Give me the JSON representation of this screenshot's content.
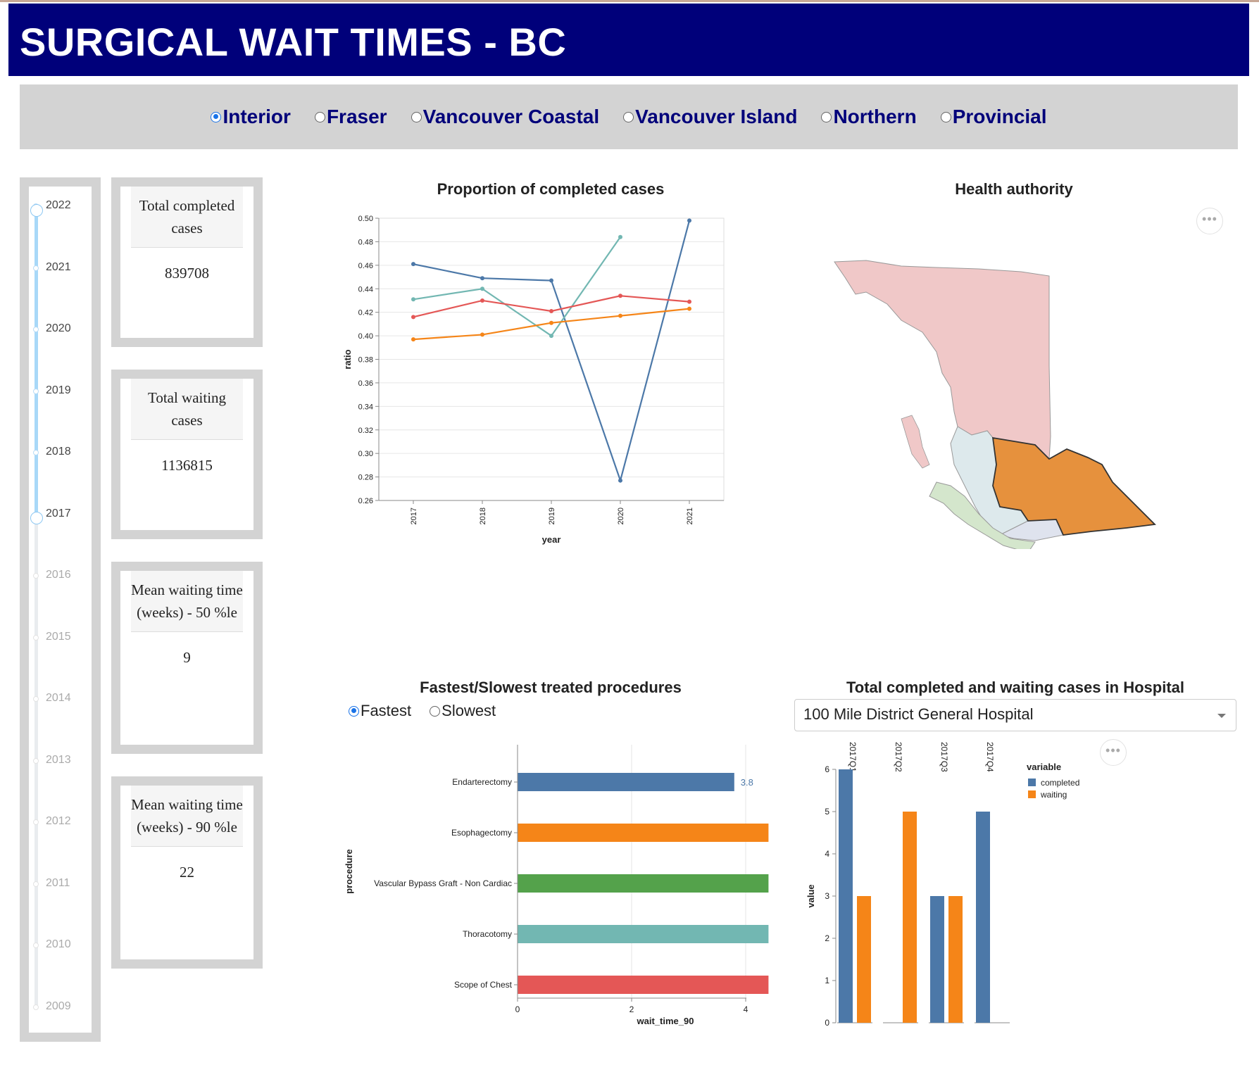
{
  "header": {
    "title": "SURGICAL WAIT TIMES - BC"
  },
  "health_authorities": {
    "selected": "Interior",
    "options": [
      "Interior",
      "Fraser",
      "Vancouver Coastal",
      "Vancouver Island",
      "Northern",
      "Provincial"
    ]
  },
  "year_slider": {
    "years": [
      "2022",
      "2021",
      "2020",
      "2019",
      "2018",
      "2017",
      "2016",
      "2015",
      "2014",
      "2013",
      "2012",
      "2011",
      "2010",
      "2009"
    ],
    "range_start": "2017",
    "range_end": "2022"
  },
  "summary_cards": [
    {
      "label": "Total completed cases",
      "value": "839708"
    },
    {
      "label": "Total waiting cases",
      "value": "1136815"
    },
    {
      "label": "Mean waiting time (weeks) - 50 %le",
      "value": "9"
    },
    {
      "label": "Mean waiting time (weeks) - 90 %le",
      "value": "22"
    }
  ],
  "line_panel": {
    "title": "Proportion of completed cases"
  },
  "map_panel": {
    "title": "Health authority",
    "menu_icon": "ellipsis-icon",
    "selected_region": "Interior"
  },
  "procedures_panel": {
    "title": "Fastest/Slowest treated procedures",
    "selected": "Fastest",
    "options": [
      "Fastest",
      "Slowest"
    ]
  },
  "hospital_panel": {
    "title": "Total completed and waiting cases in Hospital",
    "selected_hospital": "100 Mile District General Hospital",
    "menu_icon": "ellipsis-icon"
  },
  "colors": {
    "header": "#00007a",
    "panel_grey": "#d3d3d3",
    "blue": "#4c78a8",
    "orange": "#f58518",
    "green": "#54a24b",
    "teal": "#72b7b2",
    "red": "#e45756"
  },
  "chart_data": [
    {
      "type": "line",
      "title": "Proportion of completed cases",
      "xlabel": "year",
      "ylabel": "ratio",
      "x": [
        "2017",
        "2018",
        "2019",
        "2020",
        "2021"
      ],
      "ylim": [
        0.26,
        0.5
      ],
      "yticks": [
        "0.26",
        "0.28",
        "0.30",
        "0.32",
        "0.34",
        "0.36",
        "0.38",
        "0.40",
        "0.42",
        "0.44",
        "0.46",
        "0.48",
        "0.50"
      ],
      "grid": true,
      "series": [
        {
          "color": "#4c78a8",
          "values": [
            0.461,
            0.449,
            0.447,
            0.277,
            0.498
          ]
        },
        {
          "color": "#72b7b2",
          "values": [
            0.431,
            0.44,
            0.4,
            0.484,
            null
          ]
        },
        {
          "color": "#e45756",
          "values": [
            0.416,
            0.43,
            0.421,
            0.434,
            0.429
          ]
        },
        {
          "color": "#f58518",
          "values": [
            0.397,
            0.401,
            0.411,
            0.417,
            0.423
          ]
        }
      ]
    },
    {
      "type": "bar",
      "orientation": "horizontal",
      "xlabel": "wait_time_90",
      "ylabel": "procedure",
      "categories": [
        "Endarterectomy",
        "Esophagectomy",
        "Vascular Bypass Graft - Non Cardiac",
        "Thoracotomy",
        "Scope of Chest"
      ],
      "values": [
        3.8,
        4.4,
        4.4,
        4.4,
        4.4
      ],
      "data_labels": [
        "3.8",
        "",
        "",
        "",
        ""
      ],
      "colors": [
        "#4c78a8",
        "#f58518",
        "#54a24b",
        "#72b7b2",
        "#e45756"
      ],
      "xticks": [
        "0",
        "2",
        "4"
      ],
      "xlim": [
        0,
        4.4
      ]
    },
    {
      "type": "bar",
      "orientation": "vertical",
      "ylabel": "value",
      "categories": [
        "2017Q1",
        "2017Q2",
        "2017Q3",
        "2017Q4"
      ],
      "yticks": [
        "0",
        "1",
        "2",
        "3",
        "4",
        "5",
        "6"
      ],
      "ylim": [
        0,
        6
      ],
      "legend": {
        "title": "variable",
        "placement": "top-right",
        "entries": [
          "completed",
          "waiting"
        ]
      },
      "series": [
        {
          "name": "completed",
          "color": "#4c78a8",
          "values": [
            6,
            0,
            3,
            5
          ]
        },
        {
          "name": "waiting",
          "color": "#f58518",
          "values": [
            3,
            5,
            3,
            0
          ]
        }
      ]
    }
  ]
}
